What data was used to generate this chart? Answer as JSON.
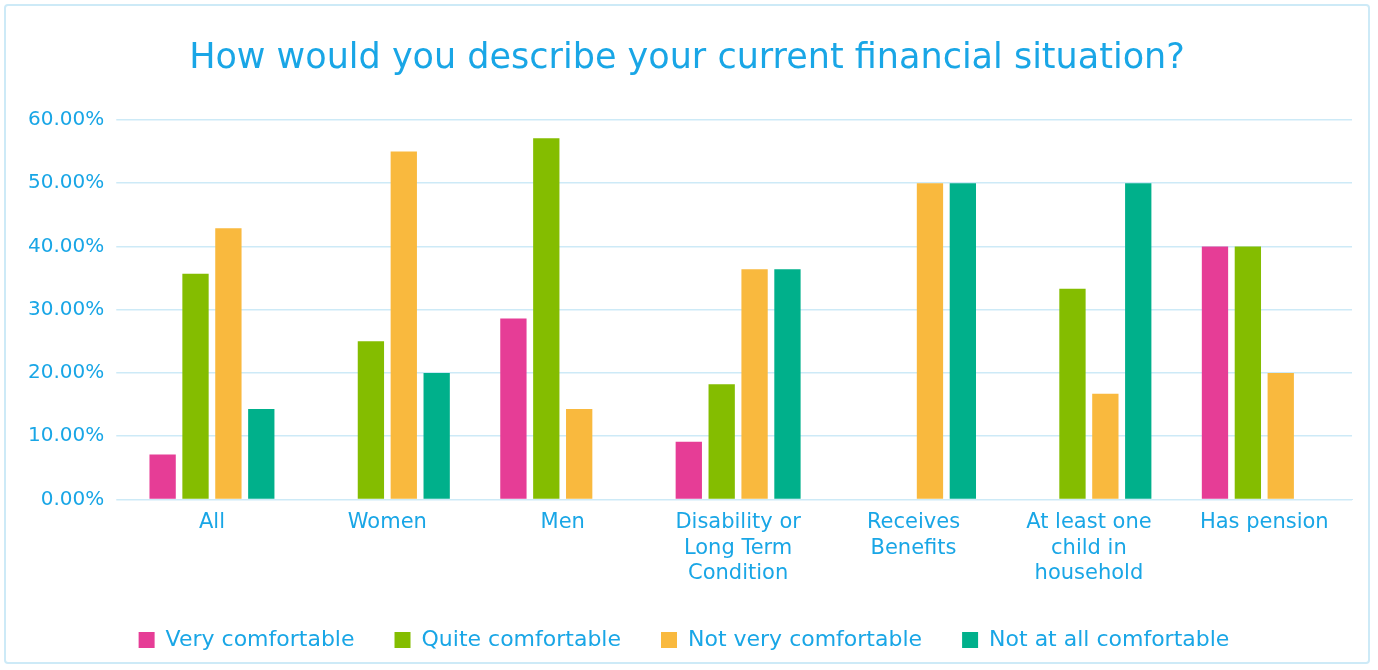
{
  "chart_data": {
    "type": "bar",
    "title": "How would you describe your current financial situation?",
    "categories": [
      "All",
      "Women",
      "Men",
      "Disability or Long Term Condition",
      "Receives Benefits",
      "At least one child in household",
      "Has pension"
    ],
    "series": [
      {
        "name": "Very comfortable",
        "color": "#e63d96",
        "values": [
          7.1,
          0,
          28.6,
          9.1,
          0,
          0,
          40
        ]
      },
      {
        "name": "Quite comfortable",
        "color": "#84bd00",
        "values": [
          35.7,
          25,
          57.1,
          18.2,
          0,
          33.3,
          40
        ]
      },
      {
        "name": "Not very comfortable",
        "color": "#f9b93e",
        "values": [
          42.9,
          55,
          14.3,
          36.4,
          50,
          16.7,
          20
        ]
      },
      {
        "name": "Not at all comfortable",
        "color": "#00b08b",
        "values": [
          14.3,
          20,
          0,
          36.4,
          50,
          50,
          0
        ]
      }
    ],
    "ylim": [
      0,
      60
    ],
    "yticks": [
      {
        "value": 0,
        "label": "0.00%"
      },
      {
        "value": 10,
        "label": "10.00%"
      },
      {
        "value": 20,
        "label": "20.00%"
      },
      {
        "value": 30,
        "label": "30.00%"
      },
      {
        "value": 40,
        "label": "40.00%"
      },
      {
        "value": 50,
        "label": "50.00%"
      },
      {
        "value": 60,
        "label": "60.00%"
      }
    ],
    "grid": "y",
    "legend": "bottom"
  }
}
